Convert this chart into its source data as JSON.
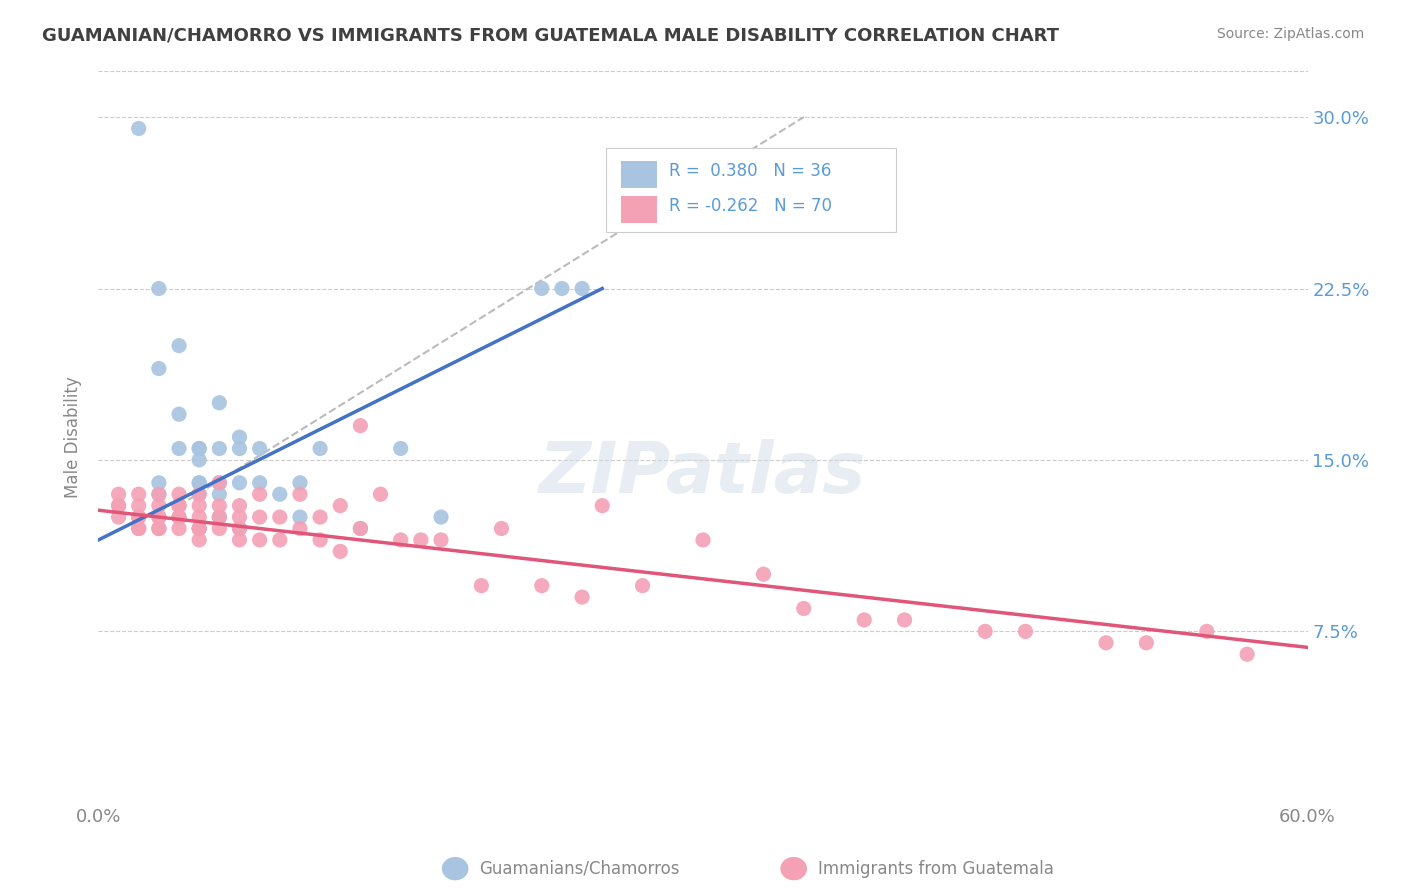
{
  "title": "GUAMANIAN/CHAMORRO VS IMMIGRANTS FROM GUATEMALA MALE DISABILITY CORRELATION CHART",
  "source": "Source: ZipAtlas.com",
  "ylabel": "Male Disability",
  "xlim": [
    0.0,
    0.6
  ],
  "ylim": [
    0.0,
    0.32
  ],
  "legend_r1": "R =  0.380",
  "legend_n1": "N = 36",
  "legend_r2": "R = -0.262",
  "legend_n2": "N = 70",
  "label1": "Guamanians/Chamorros",
  "label2": "Immigrants from Guatemala",
  "color1": "#a8c4e0",
  "color2": "#f4a0b5",
  "line_color1": "#4472c4",
  "line_color2": "#e05578",
  "trend_color": "#bbbbbb",
  "background_color": "#ffffff",
  "title_color": "#404040",
  "axis_label_color": "#888888",
  "ytick_color": "#5b9bd5",
  "xtick_color": "#888888",
  "grid_color": "#cccccc",
  "source_color": "#888888",
  "blue_scatter_x": [
    0.02,
    0.03,
    0.03,
    0.03,
    0.03,
    0.04,
    0.04,
    0.04,
    0.05,
    0.05,
    0.05,
    0.05,
    0.05,
    0.05,
    0.05,
    0.06,
    0.06,
    0.06,
    0.06,
    0.06,
    0.07,
    0.07,
    0.07,
    0.07,
    0.08,
    0.08,
    0.09,
    0.1,
    0.1,
    0.11,
    0.13,
    0.15,
    0.17,
    0.22,
    0.23,
    0.24
  ],
  "blue_scatter_y": [
    0.295,
    0.225,
    0.19,
    0.135,
    0.14,
    0.2,
    0.17,
    0.155,
    0.155,
    0.155,
    0.15,
    0.14,
    0.14,
    0.135,
    0.12,
    0.175,
    0.155,
    0.14,
    0.135,
    0.125,
    0.16,
    0.155,
    0.14,
    0.12,
    0.155,
    0.14,
    0.135,
    0.14,
    0.125,
    0.155,
    0.12,
    0.155,
    0.125,
    0.225,
    0.225,
    0.225
  ],
  "pink_scatter_x": [
    0.01,
    0.01,
    0.01,
    0.01,
    0.02,
    0.02,
    0.02,
    0.02,
    0.02,
    0.02,
    0.03,
    0.03,
    0.03,
    0.03,
    0.03,
    0.03,
    0.04,
    0.04,
    0.04,
    0.04,
    0.04,
    0.04,
    0.05,
    0.05,
    0.05,
    0.05,
    0.05,
    0.05,
    0.06,
    0.06,
    0.06,
    0.06,
    0.07,
    0.07,
    0.07,
    0.07,
    0.08,
    0.08,
    0.08,
    0.09,
    0.09,
    0.1,
    0.1,
    0.11,
    0.11,
    0.12,
    0.12,
    0.13,
    0.13,
    0.14,
    0.15,
    0.16,
    0.17,
    0.19,
    0.2,
    0.22,
    0.24,
    0.25,
    0.27,
    0.3,
    0.33,
    0.35,
    0.38,
    0.4,
    0.44,
    0.46,
    0.5,
    0.52,
    0.55,
    0.57
  ],
  "pink_scatter_y": [
    0.135,
    0.13,
    0.13,
    0.125,
    0.135,
    0.13,
    0.125,
    0.125,
    0.12,
    0.12,
    0.135,
    0.13,
    0.125,
    0.125,
    0.12,
    0.12,
    0.135,
    0.13,
    0.13,
    0.125,
    0.125,
    0.12,
    0.135,
    0.13,
    0.125,
    0.12,
    0.12,
    0.115,
    0.14,
    0.13,
    0.125,
    0.12,
    0.13,
    0.125,
    0.12,
    0.115,
    0.135,
    0.125,
    0.115,
    0.125,
    0.115,
    0.135,
    0.12,
    0.125,
    0.115,
    0.13,
    0.11,
    0.165,
    0.12,
    0.135,
    0.115,
    0.115,
    0.115,
    0.095,
    0.12,
    0.095,
    0.09,
    0.13,
    0.095,
    0.115,
    0.1,
    0.085,
    0.08,
    0.08,
    0.075,
    0.075,
    0.07,
    0.07,
    0.075,
    0.065
  ],
  "blue_trend_x": [
    0.0,
    0.25
  ],
  "blue_trend_y": [
    0.115,
    0.225
  ],
  "pink_trend_x": [
    0.0,
    0.6
  ],
  "pink_trend_y": [
    0.128,
    0.068
  ],
  "diag_trend_x": [
    0.04,
    0.35
  ],
  "diag_trend_y": [
    0.13,
    0.3
  ]
}
